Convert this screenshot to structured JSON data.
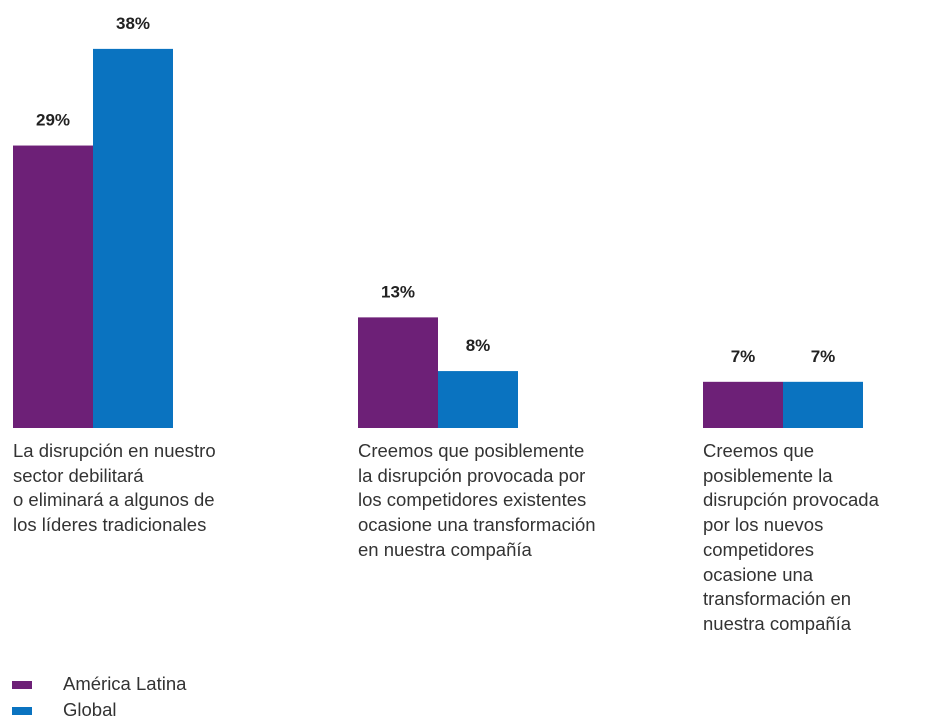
{
  "chart_data": {
    "type": "bar",
    "categories": [
      "La disrupción en nuestro\nsector debilitará\no eliminará a algunos de\nlos líderes tradicionales",
      "Creemos que posiblemente\nla disrupción provocada por\nlos competidores existentes\nocasione una transformación\nen nuestra compañía",
      "Creemos que\nposiblemente la\ndisrupción provocada\npor los nuevos\ncompetidores\nocasione una\ntransformación en\nnuestra compañía"
    ],
    "series": [
      {
        "name": "América Latina",
        "color": "#6d2077",
        "values": [
          29,
          13,
          7
        ],
        "value_labels": [
          "29%",
          "13%",
          "7%"
        ]
      },
      {
        "name": "Global",
        "color": "#0a73c0",
        "values": [
          38,
          8,
          7
        ],
        "value_labels": [
          "38%",
          "8%",
          "7%"
        ]
      }
    ],
    "ylim": [
      2.7,
      40
    ]
  }
}
